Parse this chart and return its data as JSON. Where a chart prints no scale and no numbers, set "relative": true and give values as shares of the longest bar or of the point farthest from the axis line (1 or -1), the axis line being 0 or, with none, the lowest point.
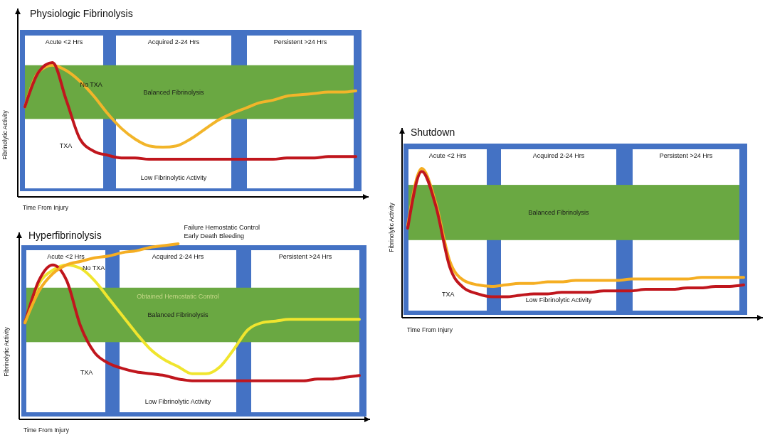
{
  "chart_data": [
    {
      "type": "line",
      "title": "Physiologic Fibrinolysis",
      "xlabel": "Time From Injury",
      "ylabel": "Fibrinolytic Activity",
      "relative": true,
      "categories": [
        null,
        null,
        null,
        null,
        null,
        null,
        null,
        null,
        null,
        null,
        null,
        null,
        null,
        null,
        null,
        null,
        null,
        null,
        null,
        null,
        null,
        null,
        null,
        null,
        null
      ],
      "series": [
        {
          "name": "No TXA",
          "color": "#f2b52a",
          "values": [
            0.67,
            0.93,
            0.98,
            0.94,
            0.86,
            0.75,
            0.62,
            0.51,
            0.43,
            0.38,
            0.37,
            0.38,
            0.43,
            0.5,
            0.57,
            0.62,
            0.66,
            0.7,
            0.72,
            0.75,
            0.76,
            0.77,
            0.78,
            0.78,
            0.79
          ]
        },
        {
          "name": "TXA",
          "color": "#c0161d",
          "values": [
            0.67,
            0.93,
            1.0,
            0.72,
            0.43,
            0.34,
            0.31,
            0.29,
            0.29,
            0.28,
            0.28,
            0.28,
            0.28,
            0.28,
            0.28,
            0.28,
            0.28,
            0.28,
            0.28,
            0.29,
            0.29,
            0.29,
            0.3,
            0.3,
            0.3
          ]
        }
      ],
      "bands": [
        {
          "axis": "y",
          "from": 0.58,
          "to": 0.98,
          "label": "Balanced Fibrinolysis",
          "color": "#6aa842"
        }
      ],
      "annotations": [
        "Acute <2 Hrs",
        "Acquired 2-24 Hrs",
        "Persistent >24 Hrs",
        "Low Fibrinolytic Activity"
      ]
    },
    {
      "type": "line",
      "title": "Hyperfibrinolysis",
      "xlabel": "Time From Injury",
      "ylabel": "Fibrinolytic Activity",
      "relative": true,
      "categories": [
        null,
        null,
        null,
        null,
        null,
        null,
        null,
        null,
        null,
        null,
        null,
        null,
        null,
        null,
        null,
        null,
        null,
        null,
        null,
        null,
        null,
        null,
        null,
        null,
        null
      ],
      "series": [
        {
          "name": "No TXA",
          "color": "#f0e52e",
          "values": [
            0.55,
            0.77,
            0.85,
            0.88,
            0.86,
            0.79,
            0.69,
            0.59,
            0.49,
            0.4,
            0.34,
            0.3,
            0.26,
            0.26,
            0.3,
            0.4,
            0.51,
            0.55,
            0.56,
            0.57,
            0.57,
            0.57,
            0.57,
            0.57,
            0.57
          ]
        },
        {
          "name": "TXA",
          "color": "#c0161d",
          "values": [
            0.55,
            0.79,
            0.88,
            0.79,
            0.53,
            0.38,
            0.32,
            0.29,
            0.27,
            0.26,
            0.25,
            0.23,
            0.22,
            0.22,
            0.22,
            0.22,
            0.22,
            0.22,
            0.22,
            0.22,
            0.22,
            0.23,
            0.23,
            0.24,
            0.25
          ]
        },
        {
          "name": "Failure Hemostatic Control\nEarly Death Bleeding",
          "color": "#f5ae22",
          "values": [
            0.55,
            0.73,
            0.83,
            0.88,
            0.9,
            0.92,
            0.93,
            0.95,
            0.96,
            0.98,
            0.99,
            1.0,
            null,
            null,
            null,
            null,
            null,
            null,
            null,
            null,
            null,
            null,
            null,
            null,
            null
          ]
        }
      ],
      "bands": [
        {
          "axis": "y",
          "from": 0.44,
          "to": 0.75,
          "label": "Balanced Fibrinolysis",
          "color": "#6aa842"
        }
      ],
      "annotations": [
        "Acute <2 Hrs",
        "Acquired 2-24 Hrs",
        "Persistent >24 Hrs",
        "Low Fibrinolytic Activity",
        "Obtained Hemostatic Control"
      ]
    },
    {
      "type": "line",
      "title": "Shutdown",
      "xlabel": "Time From Injury",
      "ylabel": "Fibrinolytic Activity",
      "relative": true,
      "categories": [
        null,
        null,
        null,
        null,
        null,
        null,
        null,
        null,
        null,
        null,
        null,
        null,
        null,
        null,
        null,
        null,
        null,
        null,
        null,
        null,
        null,
        null,
        null,
        null,
        null
      ],
      "series": [
        {
          "color": "#f5ae22",
          "values": [
            0.62,
            1.0,
            0.77,
            0.38,
            0.25,
            0.22,
            0.21,
            0.22,
            0.23,
            0.23,
            0.24,
            0.24,
            0.25,
            0.25,
            0.25,
            0.25,
            0.26,
            0.26,
            0.26,
            0.26,
            0.26,
            0.27,
            0.27,
            0.27,
            0.27
          ]
        },
        {
          "name": "TXA",
          "color": "#c0161d",
          "values": [
            0.6,
            0.98,
            0.75,
            0.34,
            0.2,
            0.16,
            0.14,
            0.14,
            0.15,
            0.16,
            0.16,
            0.17,
            0.17,
            0.17,
            0.18,
            0.18,
            0.18,
            0.19,
            0.19,
            0.19,
            0.2,
            0.2,
            0.21,
            0.21,
            0.22
          ]
        }
      ],
      "bands": [
        {
          "axis": "y",
          "from": 0.52,
          "to": 0.89,
          "label": "Balanced Fibrinolysis",
          "color": "#6aa842"
        }
      ],
      "annotations": [
        "Acute <2 Hrs",
        "Acquired 2-24 Hrs",
        "Persistent >24 Hrs",
        "Low Fibrinolytic Activity"
      ]
    }
  ]
}
